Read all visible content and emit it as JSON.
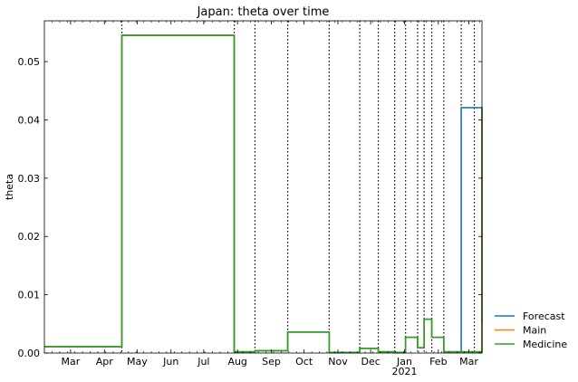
{
  "chart_data": {
    "type": "line",
    "step": true,
    "title": "Japan: theta over time",
    "xlabel": "",
    "ylabel": "theta",
    "xlim": [
      "2020-02-06",
      "2021-03-13"
    ],
    "ylim": [
      0.0,
      0.057
    ],
    "y_ticks": [
      0.0,
      0.01,
      0.02,
      0.03,
      0.04,
      0.05
    ],
    "y_tick_labels": [
      "0.00",
      "0.01",
      "0.02",
      "0.03",
      "0.04",
      "0.05"
    ],
    "x_ticks": [
      {
        "date": "2020-03-01",
        "label": "Mar"
      },
      {
        "date": "2020-04-01",
        "label": "Apr"
      },
      {
        "date": "2020-05-01",
        "label": "May"
      },
      {
        "date": "2020-06-01",
        "label": "Jun"
      },
      {
        "date": "2020-07-01",
        "label": "Jul"
      },
      {
        "date": "2020-08-01",
        "label": "Aug"
      },
      {
        "date": "2020-09-01",
        "label": "Sep"
      },
      {
        "date": "2020-10-01",
        "label": "Oct"
      },
      {
        "date": "2020-11-01",
        "label": "Nov"
      },
      {
        "date": "2020-12-01",
        "label": "Dec"
      },
      {
        "date": "2021-01-01",
        "label": "Jan",
        "sublabel": "2021"
      },
      {
        "date": "2021-02-01",
        "label": "Feb"
      },
      {
        "date": "2021-03-01",
        "label": "Mar"
      }
    ],
    "vertical_lines": [
      "2020-04-17",
      "2020-07-29",
      "2020-08-17",
      "2020-09-16",
      "2020-10-24",
      "2020-11-21",
      "2020-12-08",
      "2020-12-23",
      "2021-01-02",
      "2021-01-13",
      "2021-01-19",
      "2021-01-26",
      "2021-02-06",
      "2021-02-22",
      "2021-03-06"
    ],
    "grid": false,
    "legend_position": "outside-right-bottom",
    "series": [
      {
        "name": "Forecast",
        "color": "#1f77b4",
        "x": [
          "2020-02-06",
          "2020-04-17",
          "2020-07-29",
          "2020-08-17",
          "2020-09-16",
          "2020-10-24",
          "2020-11-21",
          "2020-12-08",
          "2020-12-23",
          "2021-01-02",
          "2021-01-13",
          "2021-01-19",
          "2021-01-26",
          "2021-02-06",
          "2021-02-22",
          "2021-03-13"
        ],
        "y": [
          0.0011,
          0.0545,
          0.0002,
          0.0004,
          0.0036,
          0.0001,
          0.0008,
          0.0002,
          0.0001,
          0.0027,
          0.0009,
          0.0058,
          0.0027,
          0.0002,
          0.0421,
          0.0053
        ]
      },
      {
        "name": "Main",
        "color": "#ff7f0e",
        "x": [
          "2020-02-06",
          "2020-04-17",
          "2020-07-29",
          "2020-08-17",
          "2020-09-16",
          "2020-10-24",
          "2020-11-21",
          "2020-12-08",
          "2020-12-23",
          "2021-01-02",
          "2021-01-13",
          "2021-01-19",
          "2021-01-26",
          "2021-02-06",
          "2021-03-13"
        ],
        "y": [
          0.0011,
          0.0545,
          0.0002,
          0.0004,
          0.0036,
          0.0001,
          0.0008,
          0.0002,
          0.0001,
          0.0027,
          0.0009,
          0.0058,
          0.0027,
          0.0002,
          0.0421
        ]
      },
      {
        "name": "Medicine",
        "color": "#2ca02c",
        "x": [
          "2020-02-06",
          "2020-04-17",
          "2020-07-29",
          "2020-08-17",
          "2020-09-16",
          "2020-10-24",
          "2020-11-21",
          "2020-12-08",
          "2020-12-23",
          "2021-01-02",
          "2021-01-13",
          "2021-01-19",
          "2021-01-26",
          "2021-02-06",
          "2021-03-13"
        ],
        "y": [
          0.0011,
          0.0545,
          0.0002,
          0.0004,
          0.0036,
          0.0001,
          0.0008,
          0.0002,
          0.0001,
          0.0027,
          0.0009,
          0.0058,
          0.0027,
          0.0002,
          0.0421
        ]
      }
    ]
  }
}
